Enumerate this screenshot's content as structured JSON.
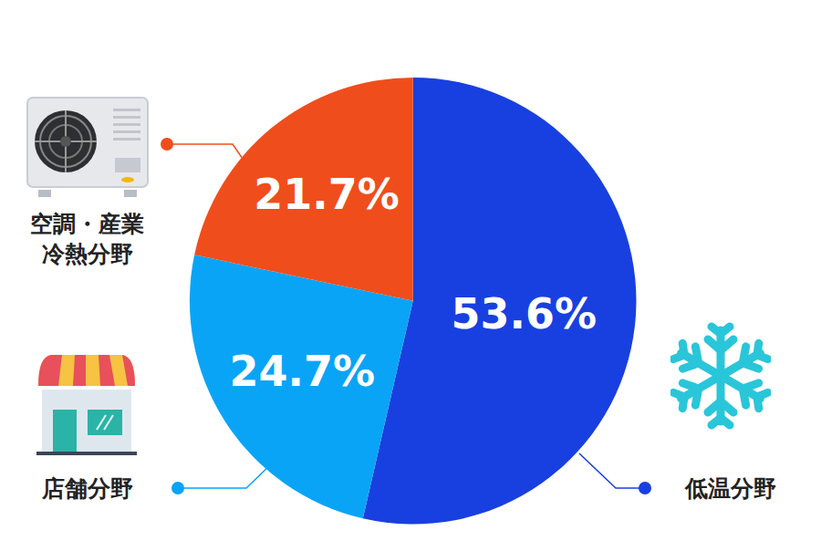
{
  "chart_data": {
    "type": "pie",
    "categories": [
      "低温分野",
      "店舗分野",
      "空調・産業\n冷熱分野"
    ],
    "values": [
      53.6,
      24.7,
      21.7
    ],
    "value_labels": [
      "53.6%",
      "24.7%",
      "21.7%"
    ],
    "colors": [
      "#1840e0",
      "#0aa4f6",
      "#f04d1c"
    ],
    "data_labels": true
  }
}
